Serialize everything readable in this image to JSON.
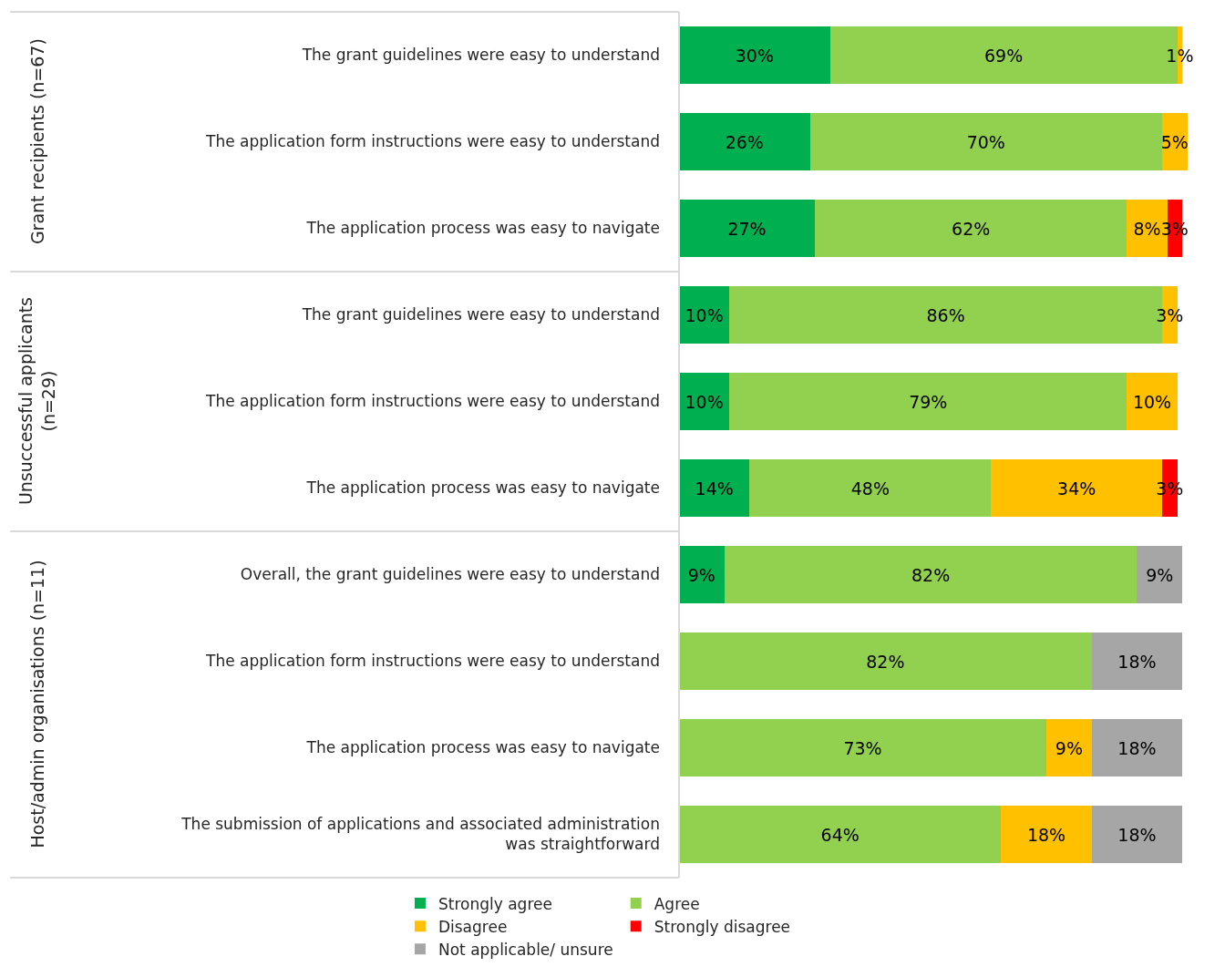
{
  "chart_data": {
    "type": "bar",
    "orientation": "horizontal",
    "stacked": true,
    "legend": "bottom",
    "tick_labels": "y",
    "categories": [
      "The grant guidelines were easy to understand",
      "The application form instructions were easy to understand",
      "The application process was easy to navigate",
      "The grant guidelines were easy to understand",
      "The application form instructions were easy to understand",
      "The application process was easy to navigate",
      "Overall, the grant guidelines were easy to understand",
      "The application form instructions were easy to understand",
      "The application process was easy to navigate",
      "The submission of applications and associated administration was straightforward"
    ],
    "annotations": [
      "Grant recipients (n=67)",
      "Unsuccessful applicants (n=29)",
      "Host/admin organisations (n=11)"
    ],
    "series": [
      {
        "name": "Strongly agree",
        "color": "#00b050",
        "values": [
          30,
          26,
          27,
          10,
          10,
          14,
          9,
          null,
          null,
          null
        ],
        "value_labels": [
          "30%",
          "26%",
          "27%",
          "10%",
          "10%",
          "14%",
          "9%",
          null,
          null,
          null
        ]
      },
      {
        "name": "Agree",
        "color": "#92d050",
        "values": [
          69,
          70,
          62,
          86,
          79,
          48,
          82,
          82,
          73,
          64
        ],
        "value_labels": [
          "69%",
          "70%",
          "62%",
          "86%",
          "79%",
          "48%",
          "82%",
          "82%",
          "73%",
          "64%"
        ]
      },
      {
        "name": "Disagree",
        "color": "#ffc000",
        "values": [
          1,
          5,
          8,
          3,
          10,
          34,
          null,
          null,
          9,
          18
        ],
        "value_labels": [
          "1%",
          "5%",
          "8%",
          "3%",
          "10%",
          "34%",
          null,
          null,
          "9%",
          "18%"
        ]
      },
      {
        "name": "Strongly disagree",
        "color": "#ff0000",
        "values": [
          null,
          null,
          3,
          null,
          null,
          3,
          null,
          null,
          null,
          null
        ],
        "value_labels": [
          null,
          null,
          "3%",
          null,
          null,
          "3%",
          null,
          null,
          null,
          null
        ]
      },
      {
        "name": "Not applicable/ unsure",
        "color": "#a6a6a6",
        "values": [
          null,
          null,
          null,
          null,
          null,
          null,
          9,
          18,
          18,
          18
        ],
        "value_labels": [
          null,
          null,
          null,
          null,
          null,
          null,
          "9%",
          "18%",
          "18%",
          "18%"
        ]
      }
    ]
  }
}
